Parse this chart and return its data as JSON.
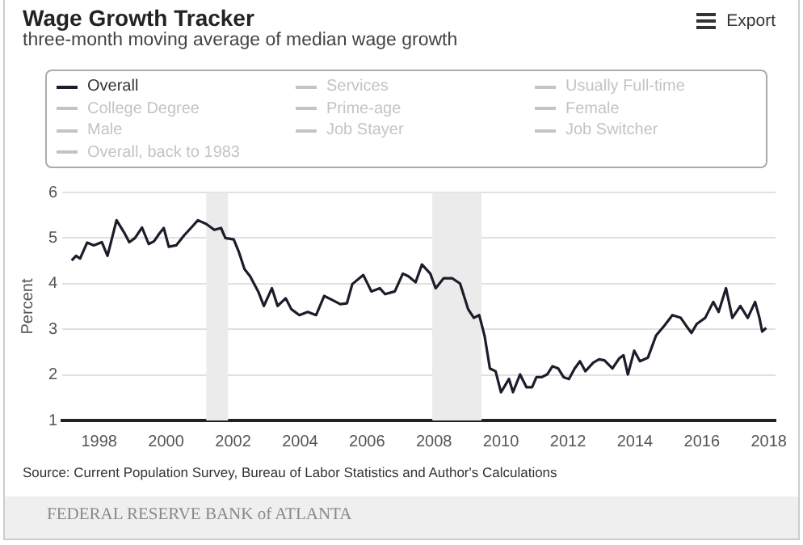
{
  "chart_data": {
    "type": "line",
    "title": "Wage Growth Tracker",
    "subtitle": "three-month moving average of median wage growth",
    "ylabel": "Percent",
    "xlim": [
      1996.9,
      2018.2
    ],
    "xticks": [
      1998,
      2000,
      2002,
      2004,
      2006,
      2008,
      2010,
      2012,
      2014,
      2016,
      2018
    ],
    "ylim": [
      1,
      6
    ],
    "yticks": [
      1,
      2,
      3,
      4,
      5,
      6
    ],
    "grid": "y",
    "legend": "top",
    "marker": "none",
    "line_style": "solid",
    "bands": [
      {
        "axis": "x",
        "from": 2001.2,
        "to": 2001.85,
        "color": "#ebebeb"
      },
      {
        "axis": "x",
        "from": 2007.95,
        "to": 2009.42,
        "color": "#ebebeb"
      }
    ],
    "annotations": [
      "Export",
      "Source: Current Population Survey, Bureau of Labor Statistics and Author's Calculations",
      "FEDERAL RESERVE BANK of ATLANTA"
    ],
    "series": [
      {
        "name": "Overall",
        "color": "#1c1c2a",
        "x": [
          1997.18,
          1997.31,
          1997.43,
          1997.64,
          1997.84,
          1998.08,
          1998.25,
          1998.52,
          1998.74,
          1998.9,
          1999.07,
          1999.28,
          1999.48,
          1999.64,
          1999.8,
          1999.93,
          2000.08,
          2000.3,
          2000.54,
          2000.79,
          2000.95,
          2001.2,
          2001.44,
          2001.64,
          2001.77,
          2002.02,
          2002.18,
          2002.34,
          2002.51,
          2002.75,
          2002.92,
          2003.16,
          2003.33,
          2003.57,
          2003.74,
          2003.98,
          2004.23,
          2004.48,
          2004.72,
          2004.97,
          2005.2,
          2005.4,
          2005.56,
          2005.89,
          2006.13,
          2006.38,
          2006.54,
          2006.83,
          2007.07,
          2007.24,
          2007.45,
          2007.64,
          2007.89,
          2008.05,
          2008.29,
          2008.54,
          2008.78,
          2009.02,
          2009.19,
          2009.35,
          2009.51,
          2009.67,
          2009.84,
          2010.0,
          2010.11,
          2010.24,
          2010.36,
          2010.57,
          2010.76,
          2010.93,
          2011.06,
          2011.22,
          2011.38,
          2011.54,
          2011.71,
          2011.87,
          2012.03,
          2012.2,
          2012.36,
          2012.52,
          2012.76,
          2012.93,
          2013.09,
          2013.33,
          2013.53,
          2013.66,
          2013.79,
          2013.98,
          2014.15,
          2014.39,
          2014.63,
          2014.88,
          2015.12,
          2015.37,
          2015.53,
          2015.69,
          2015.85,
          2016.1,
          2016.34,
          2016.5,
          2016.72,
          2016.91,
          2017.15,
          2017.37,
          2017.59,
          2017.72,
          2017.8,
          2017.92
        ],
        "values": [
          4.51,
          4.61,
          4.55,
          4.9,
          4.84,
          4.91,
          4.61,
          5.39,
          5.13,
          4.91,
          5.0,
          5.23,
          4.87,
          4.93,
          5.1,
          5.22,
          4.81,
          4.84,
          5.06,
          5.26,
          5.39,
          5.31,
          5.18,
          5.22,
          5.0,
          4.97,
          4.68,
          4.32,
          4.16,
          3.83,
          3.51,
          3.9,
          3.51,
          3.68,
          3.44,
          3.31,
          3.38,
          3.31,
          3.73,
          3.64,
          3.55,
          3.57,
          3.99,
          4.19,
          3.83,
          3.9,
          3.77,
          3.83,
          4.22,
          4.16,
          4.03,
          4.42,
          4.22,
          3.9,
          4.12,
          4.12,
          4.0,
          3.44,
          3.25,
          3.31,
          2.86,
          2.14,
          2.08,
          1.62,
          1.75,
          1.91,
          1.62,
          2.01,
          1.73,
          1.73,
          1.95,
          1.95,
          2.01,
          2.19,
          2.14,
          1.95,
          1.91,
          2.14,
          2.3,
          2.08,
          2.27,
          2.34,
          2.32,
          2.14,
          2.36,
          2.43,
          2.01,
          2.53,
          2.3,
          2.38,
          2.86,
          3.08,
          3.31,
          3.25,
          3.08,
          2.92,
          3.12,
          3.25,
          3.6,
          3.38,
          3.9,
          3.25,
          3.51,
          3.25,
          3.6,
          3.25,
          2.95,
          3.03
        ]
      },
      {
        "name": "Services",
        "color": "#c4c4c4"
      },
      {
        "name": "Usually Full-time",
        "color": "#c4c4c4"
      },
      {
        "name": "College Degree",
        "color": "#c4c4c4"
      },
      {
        "name": "Prime-age",
        "color": "#c4c4c4"
      },
      {
        "name": "Female",
        "color": "#c4c4c4"
      },
      {
        "name": "Male",
        "color": "#c4c4c4"
      },
      {
        "name": "Job Stayer",
        "color": "#c4c4c4"
      },
      {
        "name": "Job Switcher",
        "color": "#c4c4c4"
      },
      {
        "name": "Overall, back to 1983",
        "color": "#c4c4c4"
      }
    ]
  }
}
